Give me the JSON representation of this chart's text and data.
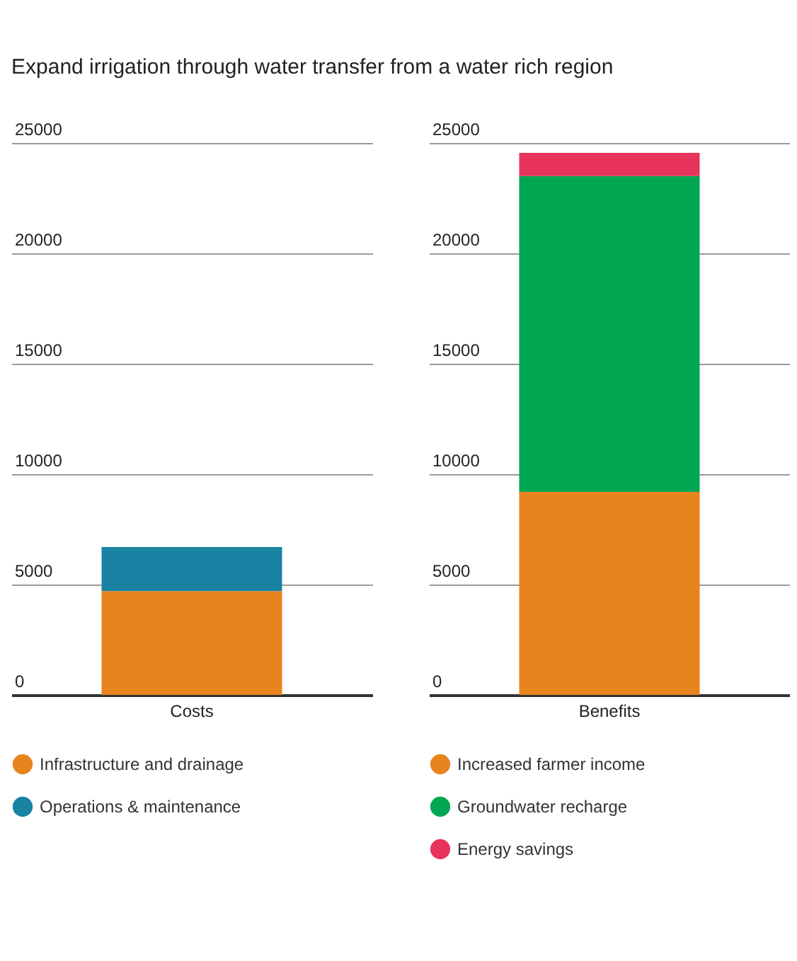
{
  "chart_data": [
    {
      "type": "bar",
      "title": "Expand irrigation through water transfer from a water rich region",
      "categories": [
        "Costs"
      ],
      "stacked": true,
      "series": [
        {
          "name": "Infrastructure and drainage",
          "color": "#e8841e",
          "values": [
            4700
          ]
        },
        {
          "name": "Operations & maintenance",
          "color": "#1a82a3",
          "values": [
            2000
          ]
        }
      ],
      "ylim": [
        0,
        25000
      ],
      "yticks": [
        0,
        5000,
        10000,
        15000,
        20000,
        25000
      ],
      "grid": "y",
      "legend": "bottom"
    },
    {
      "type": "bar",
      "categories": [
        "Benefits"
      ],
      "stacked": true,
      "series": [
        {
          "name": "Increased farmer income",
          "color": "#e8841e",
          "values": [
            9200
          ]
        },
        {
          "name": "Groundwater recharge",
          "color": "#00a651",
          "values": [
            14300
          ]
        },
        {
          "name": "Energy savings",
          "color": "#e8345a",
          "values": [
            1050
          ]
        }
      ],
      "ylim": [
        0,
        25000
      ],
      "yticks": [
        0,
        5000,
        10000,
        15000,
        20000,
        25000
      ],
      "grid": "y",
      "legend": "bottom"
    }
  ]
}
